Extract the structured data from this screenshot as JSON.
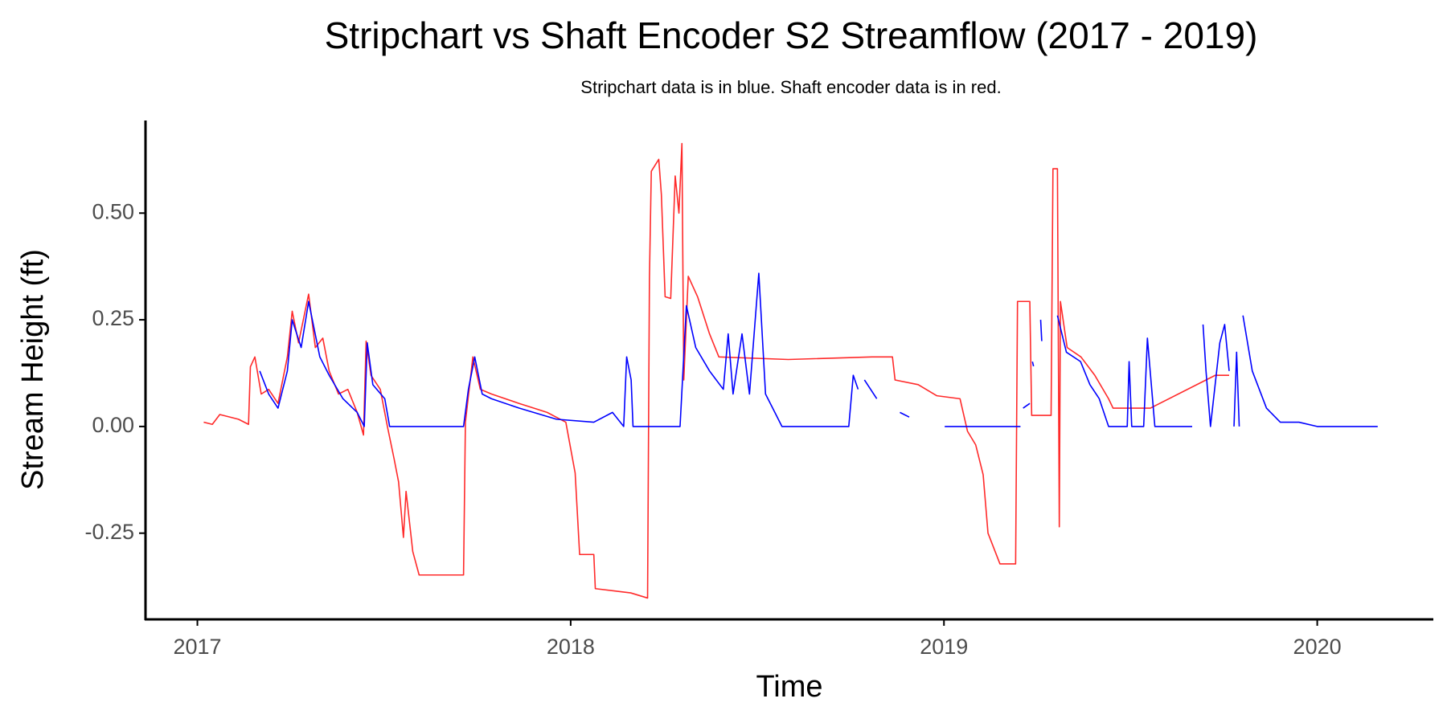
{
  "chart_data": {
    "type": "line",
    "title": "Stripchart vs Shaft Encoder S2 Streamflow (2017 - 2019)",
    "subtitle": "Stripchart data is in blue. Shaft encoder data is in red.",
    "x_label": "Time",
    "y_label": "Stream Height (ft)",
    "xlim": [
      2016.861,
      2020.311
    ],
    "ylim": [
      -0.452,
      0.717
    ],
    "xticks": [
      2017,
      2018,
      2019,
      2020
    ],
    "yticks": [
      -0.25,
      {
        "value": 0,
        "label": "0.00"
      },
      0.25,
      {
        "value": 0.5,
        "label": "0.50"
      }
    ],
    "grid": false,
    "series": [
      {
        "name": "Shaft encoder",
        "color": "#ff2a2a",
        "x": [
          2017.017,
          2017.04,
          2017.06,
          2017.11,
          2017.137,
          2017.142,
          2017.154,
          2017.171,
          2017.191,
          2017.216,
          2017.241,
          2017.254,
          2017.271,
          2017.298,
          2017.316,
          2017.336,
          2017.353,
          2017.378,
          2017.403,
          2017.428,
          2017.445,
          2017.452,
          2017.465,
          2017.49,
          2017.509,
          2017.527,
          2017.539,
          2017.552,
          2017.559,
          2017.577,
          2017.594,
          2017.713,
          2017.718,
          2017.738,
          2017.758,
          2017.788,
          2017.862,
          2017.937,
          2017.987,
          2018.012,
          2018.024,
          2018.062,
          2018.066,
          2018.161,
          2018.206,
          2018.211,
          2018.216,
          2018.236,
          2018.243,
          2018.253,
          2018.268,
          2018.28,
          2018.29,
          2018.298,
          2018.303,
          2018.315,
          2018.34,
          2018.372,
          2018.397,
          2018.583,
          2018.807,
          2018.862,
          2018.869,
          2018.931,
          2018.981,
          2019.043,
          2019.063,
          2019.085,
          2019.105,
          2019.118,
          2019.15,
          2019.192,
          2019.197,
          2019.23,
          2019.235,
          2019.287,
          2019.292,
          2019.304,
          2019.309,
          2019.312,
          2019.33,
          2019.367,
          2019.404,
          2019.441,
          2019.453,
          2019.553,
          2019.727,
          2019.764
        ],
        "values": [
          0.01,
          0.005,
          0.028,
          0.017,
          0.005,
          0.14,
          0.163,
          0.076,
          0.087,
          0.054,
          0.163,
          0.27,
          0.196,
          0.31,
          0.185,
          0.207,
          0.13,
          0.076,
          0.087,
          0.033,
          -0.02,
          0.2,
          0.12,
          0.087,
          0,
          -0.076,
          -0.13,
          -0.26,
          -0.152,
          -0.293,
          -0.348,
          -0.348,
          0.01,
          0.163,
          0.087,
          0.076,
          0.054,
          0.033,
          0.01,
          -0.109,
          -0.3,
          -0.3,
          -0.38,
          -0.39,
          -0.402,
          0.348,
          0.598,
          0.626,
          0.543,
          0.304,
          0.3,
          0.587,
          0.5,
          0.663,
          0.109,
          0.352,
          0.304,
          0.217,
          0.163,
          0.157,
          0.163,
          0.163,
          0.109,
          0.098,
          0.072,
          0.065,
          -0.011,
          -0.043,
          -0.113,
          -0.25,
          -0.322,
          -0.322,
          0.293,
          0.293,
          0.026,
          0.026,
          0.604,
          0.604,
          -0.235,
          0.293,
          0.185,
          0.163,
          0.12,
          0.065,
          0.043,
          0.043,
          0.12,
          0.12
        ]
      },
      {
        "name": "Stripchart",
        "color": "#0000ff",
        "x": [
          2017.167,
          2017.191,
          2017.216,
          2017.241,
          2017.254,
          2017.278,
          2017.298,
          2017.328,
          2017.353,
          2017.39,
          2017.428,
          2017.447,
          2017.455,
          2017.47,
          2017.502,
          2017.515,
          2017.713,
          2017.726,
          2017.743,
          2017.763,
          2017.788,
          2017.862,
          2017.962,
          2018.062,
          2018.112,
          2018.142,
          2018.15,
          2018.162,
          2018.167,
          2018.293,
          2018.31,
          2018.335,
          2018.372,
          2018.409,
          2018.422,
          2018.435,
          2018.459,
          2018.479,
          2018.504,
          2018.522,
          2018.547,
          2018.566,
          2018.745,
          2018.757,
          2018.77,
          null,
          2018.787,
          2018.82,
          null,
          2018.882,
          2018.907,
          null,
          2019.002,
          2019.205,
          null,
          2019.212,
          2019.23,
          null,
          2019.237,
          2019.24,
          null,
          2019.259,
          2019.262,
          null,
          2019.304,
          2019.328,
          2019.366,
          2019.391,
          2019.416,
          2019.441,
          2019.491,
          2019.496,
          2019.503,
          2019.535,
          2019.545,
          2019.565,
          2019.665,
          null,
          2019.694,
          2019.702,
          2019.714,
          2019.739,
          2019.752,
          2019.764,
          null,
          2019.777,
          2019.784,
          2019.791,
          null,
          2019.801,
          2019.826,
          2019.864,
          2019.901,
          2019.951,
          2020.0,
          2020.162
        ],
        "values": [
          0.13,
          0.076,
          0.043,
          0.13,
          0.25,
          0.185,
          0.293,
          0.163,
          0.12,
          0.065,
          0.033,
          0,
          0.196,
          0.098,
          0.065,
          0,
          0,
          0.087,
          0.163,
          0.076,
          0.065,
          0.043,
          0.017,
          0.01,
          0.033,
          0,
          0.163,
          0.109,
          0,
          0,
          0.283,
          0.185,
          0.13,
          0.087,
          0.217,
          0.076,
          0.217,
          0.076,
          0.359,
          0.076,
          0.033,
          0,
          0,
          0.12,
          0.087,
          null,
          0.109,
          0.065,
          null,
          0.033,
          0.022,
          null,
          0,
          0,
          null,
          0.043,
          0.054,
          null,
          0.152,
          0.141,
          null,
          0.25,
          0.2,
          null,
          0.26,
          0.174,
          0.152,
          0.098,
          0.065,
          0,
          0,
          0.152,
          0,
          0,
          0.207,
          0,
          0,
          null,
          0.239,
          0.13,
          0,
          0.196,
          0.239,
          0.13,
          null,
          0,
          0.174,
          0,
          null,
          0.26,
          0.13,
          0.043,
          0.01,
          0.01,
          0,
          0
        ]
      }
    ]
  }
}
